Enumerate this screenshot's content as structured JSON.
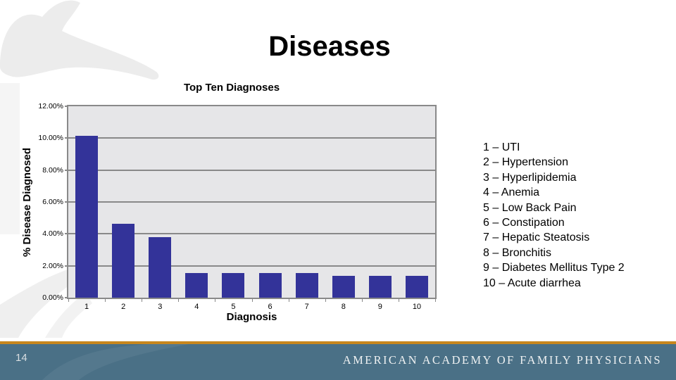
{
  "slide": {
    "title": "Diseases"
  },
  "chart_data": {
    "type": "bar",
    "title": "Top Ten Diagnoses",
    "xlabel": "Diagnosis",
    "ylabel": "% Disease Diagnosed",
    "categories": [
      "1",
      "2",
      "3",
      "4",
      "5",
      "6",
      "7",
      "8",
      "9",
      "10"
    ],
    "values": [
      10.15,
      4.65,
      3.8,
      1.55,
      1.55,
      1.55,
      1.55,
      1.35,
      1.35,
      1.35
    ],
    "ylim": [
      0,
      12
    ],
    "ytick_step": 2,
    "ytick_labels": [
      "0.00%",
      "2.00%",
      "4.00%",
      "6.00%",
      "8.00%",
      "10.00%",
      "12.00%"
    ],
    "grid": true,
    "legend_position": "right-text-list",
    "bar_color": "#333399",
    "plot_bg": "#e6e6e8",
    "grid_color": "#898989"
  },
  "legend": {
    "items": [
      "1 – UTI",
      "2 – Hypertension",
      "3 – Hyperlipidemia",
      "4 – Anemia",
      "5 – Low Back Pain",
      "6 – Constipation",
      "7 – Hepatic Steatosis",
      "8 – Bronchitis",
      "9 – Diabetes Mellitus Type 2",
      "10 – Acute diarrhea"
    ]
  },
  "footer": {
    "page_number": "14",
    "brand": "AMERICAN ACADEMY OF FAMILY PHYSICIANS"
  },
  "colors": {
    "bar": "#333399",
    "footer_bar": "#4a7086",
    "footer_accent": "#c8871d",
    "watermark": "#ececec"
  }
}
